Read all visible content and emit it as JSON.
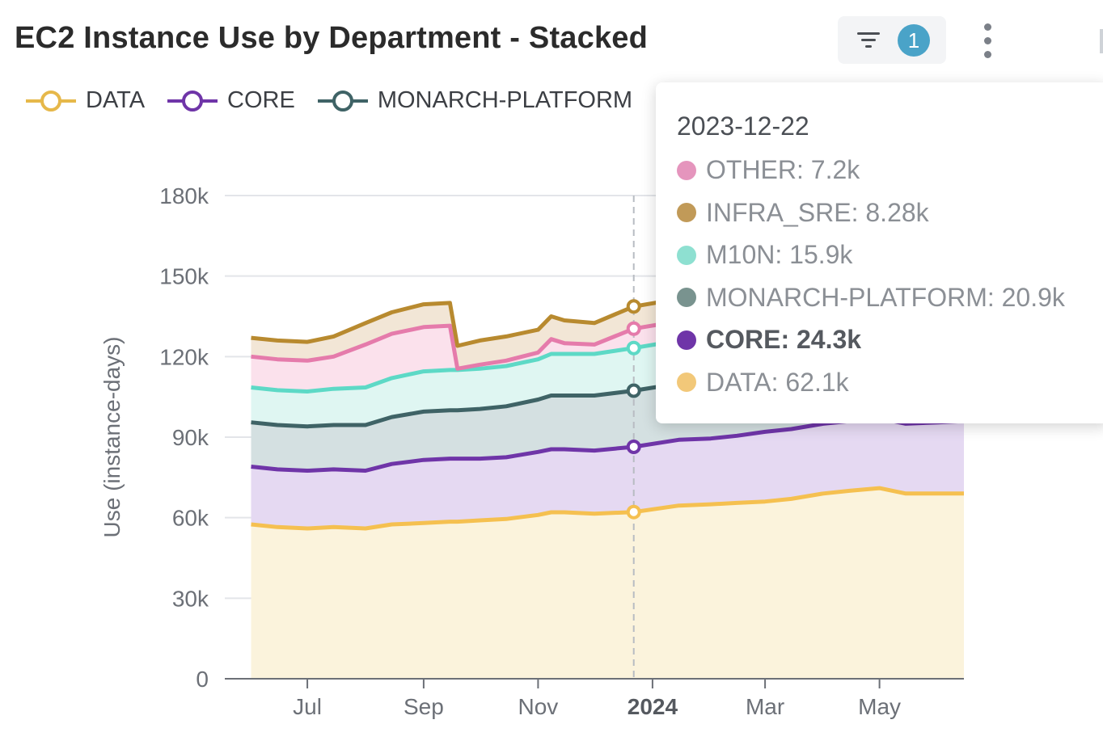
{
  "title": "EC2 Instance Use by Department - Stacked",
  "filter_count": "1",
  "legend": [
    {
      "label": "DATA",
      "color": "#e6b84a"
    },
    {
      "label": "CORE",
      "color": "#6f35a8"
    },
    {
      "label": "MONARCH-PLATFORM",
      "color": "#3f6366"
    }
  ],
  "chart_data": {
    "type": "area",
    "stacked": true,
    "ylabel": "Use (instance-days)",
    "ylim": [
      0,
      180000
    ],
    "yticks": [
      0,
      30000,
      60000,
      90000,
      120000,
      150000,
      180000
    ],
    "ytick_labels": [
      "0",
      "30k",
      "60k",
      "90k",
      "120k",
      "150k",
      "180k"
    ],
    "xrange": [
      "2023-05-18",
      "2024-06-15"
    ],
    "xticks": [
      {
        "date": "2023-07-01",
        "label": "Jul",
        "bold": false
      },
      {
        "date": "2023-09-01",
        "label": "Sep",
        "bold": false
      },
      {
        "date": "2023-11-01",
        "label": "Nov",
        "bold": false
      },
      {
        "date": "2024-01-01",
        "label": "2024",
        "bold": true
      },
      {
        "date": "2024-03-01",
        "label": "Mar",
        "bold": false
      },
      {
        "date": "2024-05-01",
        "label": "May",
        "bold": false
      }
    ],
    "x": [
      "2023-06-01",
      "2023-06-15",
      "2023-07-01",
      "2023-07-15",
      "2023-08-01",
      "2023-08-15",
      "2023-09-01",
      "2023-09-15",
      "2023-09-19",
      "2023-10-01",
      "2023-10-15",
      "2023-11-01",
      "2023-11-08",
      "2023-11-15",
      "2023-12-01",
      "2023-12-22",
      "2024-01-15",
      "2024-02-01",
      "2024-02-15",
      "2024-03-01",
      "2024-03-15",
      "2024-04-01",
      "2024-04-15",
      "2024-05-01",
      "2024-05-15",
      "2024-06-01",
      "2024-06-15"
    ],
    "series": [
      {
        "name": "DATA",
        "color": "#f5c050",
        "values": [
          57500,
          56500,
          56000,
          56500,
          56000,
          57500,
          58000,
          58500,
          58500,
          59000,
          59500,
          61000,
          62000,
          62000,
          61500,
          62100,
          64500,
          65000,
          65500,
          66000,
          67000,
          69000,
          70000,
          71000,
          69000,
          69000,
          69000
        ]
      },
      {
        "name": "CORE",
        "color": "#6f35a8",
        "values": [
          21500,
          21500,
          21500,
          21500,
          21500,
          22500,
          23500,
          23500,
          23500,
          23000,
          23000,
          23500,
          23500,
          23500,
          23500,
          24300,
          24500,
          24500,
          25000,
          26000,
          26000,
          26000,
          26000,
          26000,
          26000,
          26500,
          27000
        ]
      },
      {
        "name": "MONARCH-PLATFORM",
        "color": "#3f6366",
        "values": [
          16500,
          16500,
          16500,
          16500,
          17000,
          17500,
          18000,
          18000,
          18000,
          18500,
          19000,
          19500,
          20000,
          20000,
          20500,
          20900,
          21000,
          21000,
          21000,
          21000,
          21500,
          21500,
          21500,
          21500,
          21500,
          21500,
          21500
        ]
      },
      {
        "name": "M10N",
        "color": "#5dd9c6",
        "values": [
          13000,
          13000,
          13000,
          13500,
          14000,
          14500,
          15000,
          15000,
          15000,
          15000,
          15000,
          15000,
          15500,
          15500,
          15500,
          15900,
          16000,
          16000,
          16000,
          16000,
          16000,
          16000,
          16000,
          16000,
          16000,
          16000,
          16000
        ]
      },
      {
        "name": "OTHER",
        "color": "#e57bab",
        "values": [
          11500,
          11500,
          11500,
          12000,
          16000,
          16500,
          16500,
          16500,
          500,
          1500,
          2000,
          2500,
          5500,
          4000,
          3500,
          7200,
          7200,
          7200,
          7200,
          7200,
          7200,
          7200,
          7200,
          7200,
          7200,
          7200,
          7200
        ]
      },
      {
        "name": "INFRA_SRE",
        "color": "#b88a2f",
        "values": [
          7000,
          7000,
          7000,
          7500,
          8000,
          8000,
          8500,
          8500,
          8500,
          9000,
          9000,
          8500,
          8500,
          8500,
          8000,
          8280,
          8300,
          8300,
          8300,
          8300,
          8300,
          8300,
          8300,
          8300,
          8300,
          8300,
          8300
        ]
      }
    ],
    "hover": {
      "date": "2023-12-22"
    }
  },
  "tooltip": {
    "date": "2023-12-22",
    "rows": [
      {
        "label": "OTHER: 7.2k",
        "color": "#e595bd",
        "bold": false
      },
      {
        "label": "INFRA_SRE: 8.28k",
        "color": "#c19a58",
        "bold": false
      },
      {
        "label": "M10N: 15.9k",
        "color": "#8ee0d1",
        "bold": false
      },
      {
        "label": "MONARCH-PLATFORM: 20.9k",
        "color": "#79938f",
        "bold": false
      },
      {
        "label": "CORE: 24.3k",
        "color": "#6f35a8",
        "bold": true
      },
      {
        "label": "DATA: 62.1k",
        "color": "#f2c879",
        "bold": false
      }
    ]
  }
}
